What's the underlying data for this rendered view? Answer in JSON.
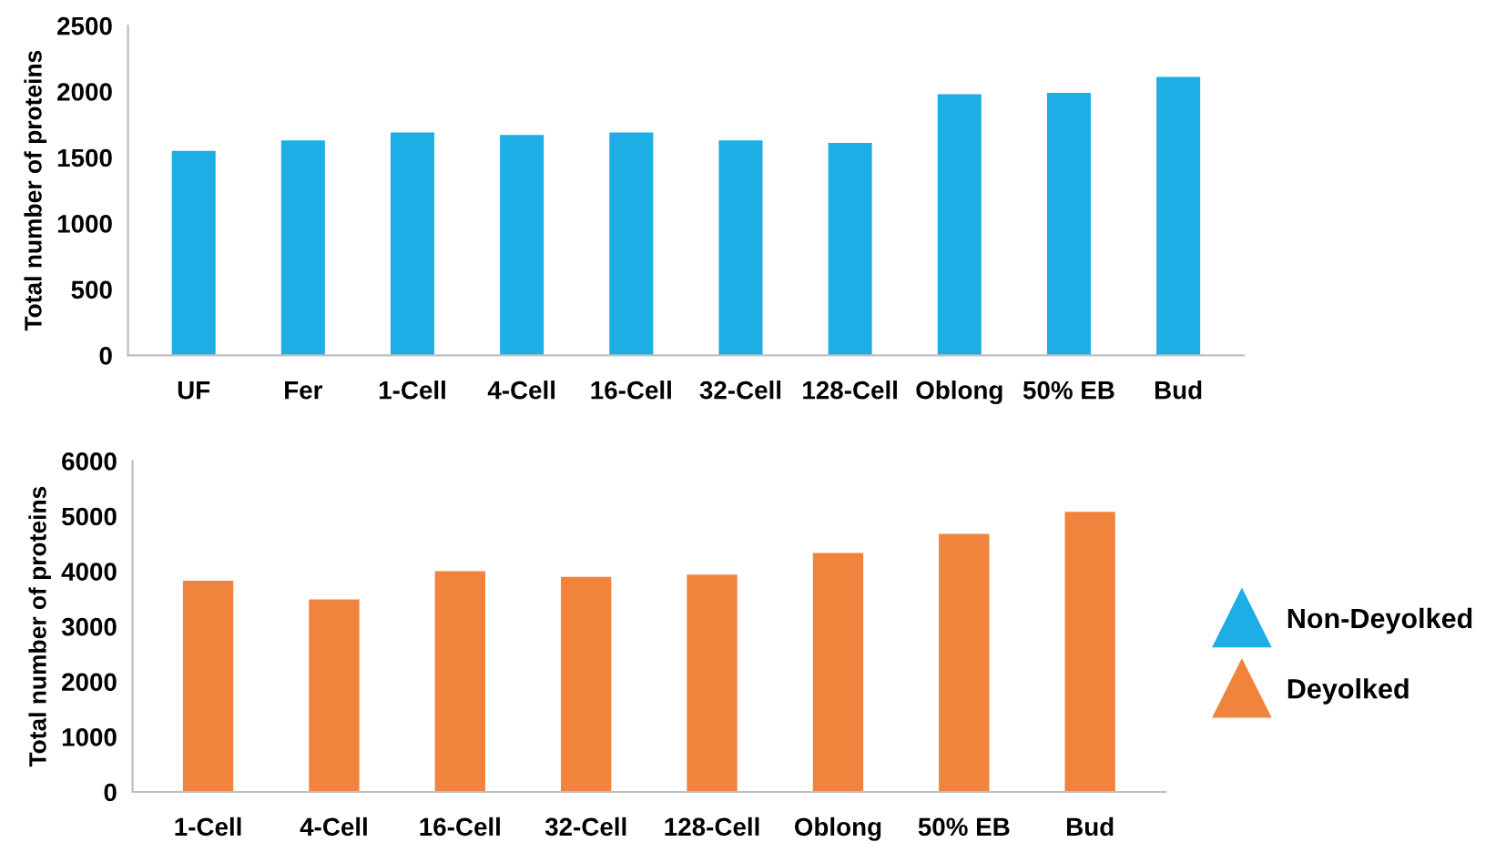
{
  "chart_data": [
    {
      "type": "bar",
      "ylabel": "Total number of proteins",
      "categories": [
        "UF",
        "Fer",
        "1-Cell",
        "4-Cell",
        "16-Cell",
        "32-Cell",
        "128-Cell",
        "Oblong",
        "50% EB",
        "Bud"
      ],
      "ylim": [
        0,
        2500
      ],
      "yticks": [
        0,
        500,
        1000,
        1500,
        2000,
        2500
      ],
      "grid": false,
      "legend": "right",
      "marker": "triangle",
      "series": [
        {
          "name": "Non-Deyolked",
          "color": "#1caee4",
          "values": [
            1550,
            1630,
            1690,
            1670,
            1690,
            1630,
            1610,
            1980,
            1990,
            2110
          ]
        }
      ]
    },
    {
      "type": "bar",
      "ylabel": "Total number of proteins",
      "categories": [
        "1-Cell",
        "4-Cell",
        "16-Cell",
        "32-Cell",
        "128-Cell",
        "Oblong",
        "50% EB",
        "Bud"
      ],
      "ylim": [
        0,
        6000
      ],
      "yticks": [
        0,
        1000,
        2000,
        3000,
        4000,
        5000,
        6000
      ],
      "grid": false,
      "legend": "right",
      "marker": "triangle",
      "series": [
        {
          "name": "Deyolked",
          "color": "#f0843c",
          "values": [
            3830,
            3490,
            4000,
            3900,
            3940,
            4330,
            4680,
            5080
          ]
        }
      ]
    }
  ]
}
